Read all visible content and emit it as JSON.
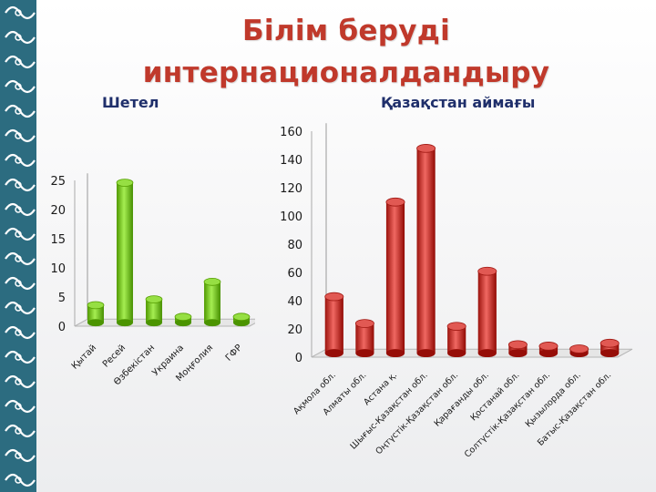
{
  "slide": {
    "title_line1": "Білім беруді",
    "title_line2": "интернационалдандыру"
  },
  "colors": {
    "title": "#c0392b",
    "subtitle": "#1f2f6b",
    "green_bar": "#7dc62a",
    "red_bar": "#c8403a",
    "border": "#2c6c80"
  },
  "chart_data": [
    {
      "type": "bar",
      "title": "Шетел",
      "categories": [
        "Қытай",
        "Ресей",
        "Өзбекістан",
        "Украина",
        "Моңғолия",
        "ГФР"
      ],
      "values": [
        3,
        24,
        4,
        1,
        7,
        1
      ],
      "ylim": [
        0,
        25
      ],
      "yticks": [
        0,
        5,
        10,
        15,
        20,
        25
      ],
      "xlabel": "",
      "ylabel": "",
      "grid": false
    },
    {
      "type": "bar",
      "title": "Қазақстан аймағы",
      "categories": [
        "Ақмола обл.",
        "Алматы обл.",
        "Астана қ.",
        "Шығыс-Қазақстан обл.",
        "Оңтүстік-Қазақстан обл.",
        "Қарағанды обл.",
        "Қостанай обл.",
        "Солтүстік-Қазақстан обл.",
        "Қызылорда обл.",
        "Батыс-Қазақстан обл."
      ],
      "values": [
        40,
        21,
        107,
        145,
        19,
        58,
        6,
        5,
        3,
        7
      ],
      "ylim": [
        0,
        160
      ],
      "yticks": [
        0,
        20,
        40,
        60,
        80,
        100,
        120,
        140,
        160
      ],
      "xlabel": "",
      "ylabel": "",
      "grid": false
    }
  ]
}
